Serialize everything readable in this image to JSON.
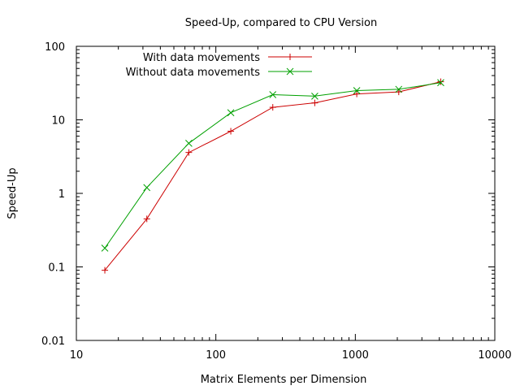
{
  "chart_data": {
    "type": "line",
    "title": "Speed-Up, compared to CPU Version",
    "xlabel": "Matrix Elements per Dimension",
    "ylabel": "Speed-Up",
    "x_scale": "log",
    "y_scale": "log",
    "xlim": [
      10,
      10000
    ],
    "ylim": [
      0.01,
      100
    ],
    "x_ticks": [
      {
        "value": 10,
        "label": "10"
      },
      {
        "value": 100,
        "label": "100"
      },
      {
        "value": 1000,
        "label": "1000"
      },
      {
        "value": 10000,
        "label": "10000"
      }
    ],
    "y_ticks": [
      {
        "value": 0.01,
        "label": "0.01"
      },
      {
        "value": 0.1,
        "label": "0.1"
      },
      {
        "value": 1,
        "label": "1"
      },
      {
        "value": 10,
        "label": "10"
      },
      {
        "value": 100,
        "label": "100"
      }
    ],
    "grid": false,
    "legend_position": "top-left",
    "x": [
      16,
      32,
      64,
      128,
      256,
      512,
      1024,
      2048,
      4096
    ],
    "series": [
      {
        "name": "With data movements",
        "color": "#cc0000",
        "marker": "plus",
        "values": [
          0.09,
          0.45,
          3.6,
          7.0,
          14.8,
          17.0,
          22.5,
          24.0,
          33.0
        ]
      },
      {
        "name": "Without data movements",
        "color": "#00a000",
        "marker": "cross",
        "values": [
          0.18,
          1.2,
          4.8,
          12.5,
          22.0,
          21.0,
          25.0,
          26.0,
          32.0
        ]
      }
    ]
  }
}
